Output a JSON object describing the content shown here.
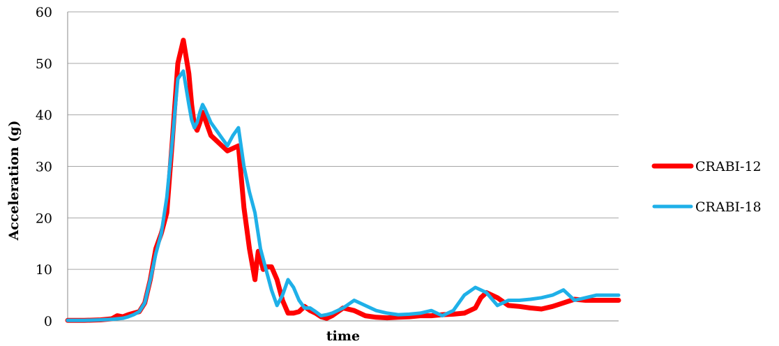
{
  "chart_data": {
    "type": "line",
    "title": "",
    "xlabel": "time",
    "ylabel": "Acceleration (g)",
    "ylim": [
      0,
      60
    ],
    "y_ticks": [
      "0",
      "10",
      "20",
      "30",
      "40",
      "50",
      "60"
    ],
    "grid": "horizontal",
    "legend_position": "right",
    "x_tick_labels": false,
    "x_range": [
      0,
      100
    ],
    "series": [
      {
        "name": "CRABI-12",
        "color": "#ff0000",
        "x": [
          0,
          3,
          6,
          8,
          9,
          10,
          11,
          12,
          13,
          14,
          15,
          16,
          17,
          18,
          19,
          20,
          21,
          22,
          22.5,
          23,
          23.5,
          24,
          24.5,
          25,
          26,
          27,
          28,
          29,
          30,
          31,
          32,
          33,
          34,
          34.3,
          34.6,
          35,
          35.5,
          36,
          37,
          38,
          39,
          40,
          41,
          42,
          43,
          44,
          45,
          46,
          47,
          48,
          50,
          52,
          54,
          56,
          58,
          60,
          62,
          64,
          66,
          68,
          70,
          72,
          74,
          75,
          76,
          78,
          80,
          82,
          84,
          86,
          88,
          90,
          92,
          94,
          96,
          98,
          100
        ],
        "values": [
          0.1,
          0.1,
          0.2,
          0.4,
          1.0,
          0.8,
          1.2,
          1.5,
          1.8,
          3.5,
          8.0,
          14.0,
          17.0,
          21.0,
          35.0,
          50.0,
          54.5,
          48.0,
          42.0,
          38.0,
          37.0,
          38.5,
          40.5,
          39.0,
          36.0,
          35.0,
          34.0,
          33.0,
          33.5,
          34.0,
          22.0,
          14.0,
          8.0,
          11.0,
          13.5,
          12.0,
          10.0,
          10.5,
          10.5,
          8.0,
          4.0,
          1.5,
          1.5,
          1.8,
          2.8,
          2.0,
          1.5,
          0.8,
          0.5,
          1.0,
          2.5,
          2.0,
          1.0,
          0.7,
          0.6,
          0.7,
          0.8,
          1.0,
          1.0,
          1.2,
          1.3,
          1.5,
          2.5,
          4.5,
          5.5,
          4.5,
          3.0,
          2.8,
          2.5,
          2.3,
          2.8,
          3.5,
          4.2,
          4.0,
          4.0,
          4.0,
          4.0
        ]
      },
      {
        "name": "CRABI-18",
        "color": "#1fb0e8",
        "x": [
          0,
          3,
          6,
          8,
          9,
          10,
          11,
          12,
          13,
          14,
          15,
          16,
          17,
          18,
          19,
          20,
          21,
          22,
          22.5,
          23,
          23.5,
          24,
          24.5,
          25,
          26,
          27,
          28,
          29,
          30,
          31,
          32,
          33,
          34,
          35,
          36,
          37,
          38,
          39,
          40,
          41,
          42,
          43,
          44,
          45,
          46,
          47,
          48,
          50,
          52,
          54,
          56,
          58,
          60,
          62,
          64,
          66,
          68,
          70,
          72,
          74,
          76,
          78,
          80,
          82,
          84,
          86,
          88,
          90,
          92,
          94,
          96,
          98,
          100
        ],
        "values": [
          0.1,
          0.1,
          0.2,
          0.3,
          0.4,
          0.5,
          0.8,
          1.2,
          1.8,
          3.5,
          8.0,
          13.0,
          17.0,
          24.0,
          35.0,
          47.0,
          48.5,
          42.0,
          39.0,
          37.5,
          38.5,
          40.5,
          42.0,
          41.0,
          38.5,
          37.0,
          35.5,
          34.0,
          36.0,
          37.5,
          30.0,
          25.0,
          21.0,
          14.0,
          10.0,
          6.0,
          3.0,
          5.0,
          8.0,
          6.5,
          4.0,
          2.5,
          2.5,
          1.8,
          1.0,
          1.2,
          1.5,
          2.5,
          4.0,
          3.0,
          2.0,
          1.5,
          1.2,
          1.3,
          1.5,
          2.0,
          1.0,
          2.0,
          5.0,
          6.5,
          5.5,
          3.0,
          4.0,
          4.0,
          4.2,
          4.5,
          5.0,
          6.0,
          4.0,
          4.5,
          5.0,
          5.0,
          5.0
        ]
      }
    ]
  }
}
